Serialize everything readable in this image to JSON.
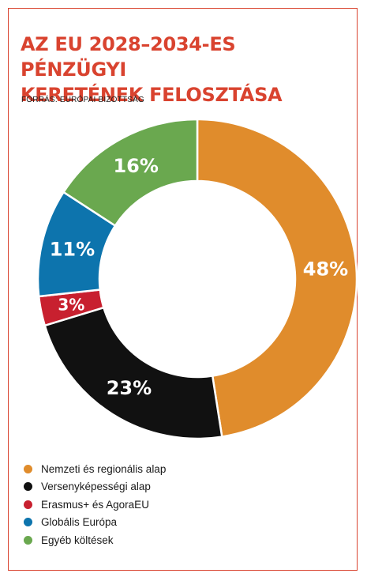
{
  "title_lines": [
    "AZ EU 2028–2034-ES PÉNZÜGYI",
    "KERETÉNEK FELOSZTÁSA"
  ],
  "source": "FORRÁS: EURÓPAI BIZOTTSÁG",
  "colors": {
    "accent": "#d9432f",
    "frame": "#d9432f"
  },
  "chart_data": {
    "type": "pie",
    "variant": "donut",
    "title": "AZ EU 2028–2034-ES PÉNZÜGYI KERETÉNEK FELOSZTÁSA",
    "unit": "%",
    "slices": [
      {
        "label": "Nemzeti és regionális alap",
        "value": 48,
        "display": "48%",
        "color": "#e08c2c"
      },
      {
        "label": "Versenyképességi alap",
        "value": 23,
        "display": "23%",
        "color": "#111111"
      },
      {
        "label": "Erasmus+ és AgoraEU",
        "value": 3,
        "display": "3%",
        "color": "#c8202f"
      },
      {
        "label": "Globális Európa",
        "value": 11,
        "display": "11%",
        "color": "#0d74ad"
      },
      {
        "label": "Egyéb költések",
        "value": 16,
        "display": "16%",
        "color": "#6aa84f"
      }
    ],
    "legend_position": "bottom-left"
  }
}
